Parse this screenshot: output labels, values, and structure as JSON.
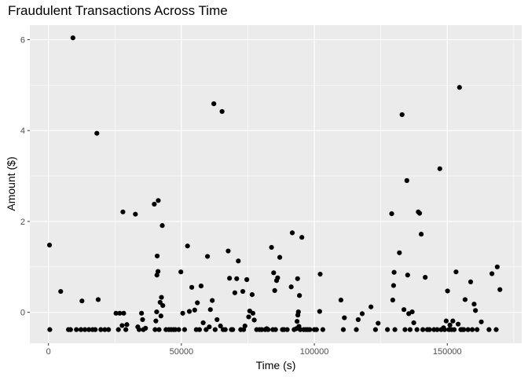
{
  "chart_data": {
    "type": "scatter",
    "title": "Fraudulent Transactions Across Time",
    "xlabel": "Time (s)",
    "ylabel": "Amount ($)",
    "xlim": [
      -7000,
      178000
    ],
    "ylim": [
      -0.68,
      6.32
    ],
    "x_ticks": [
      0,
      50000,
      100000,
      150000
    ],
    "x_tick_labels": [
      "0",
      "50000",
      "100000",
      "150000"
    ],
    "y_ticks": [
      0,
      2,
      4,
      6
    ],
    "y_tick_labels": [
      "0",
      "2",
      "4",
      "6"
    ],
    "grid": true,
    "point_color": "#000000",
    "panel_background": "#ebebeb",
    "grid_color": "#ffffff",
    "points": [
      [
        400,
        1.48
      ],
      [
        500,
        -0.38
      ],
      [
        4600,
        0.46
      ],
      [
        7500,
        -0.38
      ],
      [
        8300,
        -0.38
      ],
      [
        9200,
        6.04
      ],
      [
        10500,
        -0.38
      ],
      [
        12200,
        -0.38
      ],
      [
        12600,
        0.25
      ],
      [
        13700,
        -0.38
      ],
      [
        15200,
        -0.38
      ],
      [
        16600,
        -0.38
      ],
      [
        17600,
        -0.38
      ],
      [
        18200,
        3.94
      ],
      [
        18700,
        0.28
      ],
      [
        19700,
        -0.38
      ],
      [
        21200,
        -0.38
      ],
      [
        22600,
        -0.38
      ],
      [
        25400,
        -0.02
      ],
      [
        26300,
        -0.38
      ],
      [
        26800,
        -0.02
      ],
      [
        27700,
        -0.29
      ],
      [
        28000,
        2.21
      ],
      [
        28300,
        -0.02
      ],
      [
        29100,
        -0.38
      ],
      [
        29500,
        -0.27
      ],
      [
        32700,
        2.16
      ],
      [
        33600,
        -0.32
      ],
      [
        34100,
        -0.38
      ],
      [
        35000,
        -0.02
      ],
      [
        35400,
        -0.16
      ],
      [
        35700,
        -0.38
      ],
      [
        36500,
        -0.35
      ],
      [
        39800,
        2.38
      ],
      [
        40100,
        -0.38
      ],
      [
        40400,
        -0.19
      ],
      [
        40700,
        0.01
      ],
      [
        40800,
        0.82
      ],
      [
        40900,
        1.24
      ],
      [
        41200,
        0.9
      ],
      [
        41300,
        2.46
      ],
      [
        41600,
        -0.38
      ],
      [
        42000,
        0.22
      ],
      [
        42300,
        -0.08
      ],
      [
        42500,
        0.33
      ],
      [
        42800,
        1.91
      ],
      [
        43000,
        0.15
      ],
      [
        44200,
        -0.38
      ],
      [
        45300,
        -0.38
      ],
      [
        46100,
        -0.38
      ],
      [
        47000,
        -0.38
      ],
      [
        47700,
        -0.38
      ],
      [
        49000,
        -0.38
      ],
      [
        49800,
        0.89
      ],
      [
        50500,
        -0.02
      ],
      [
        51200,
        -0.38
      ],
      [
        52300,
        1.46
      ],
      [
        53000,
        0.02
      ],
      [
        53900,
        0.55
      ],
      [
        55000,
        0.05
      ],
      [
        55600,
        -0.38
      ],
      [
        56000,
        0.21
      ],
      [
        56800,
        -0.38
      ],
      [
        57400,
        0.58
      ],
      [
        58200,
        -0.23
      ],
      [
        59300,
        -0.38
      ],
      [
        59800,
        1.23
      ],
      [
        60500,
        -0.32
      ],
      [
        60900,
        0.06
      ],
      [
        61600,
        0.26
      ],
      [
        62200,
        4.59
      ],
      [
        62700,
        -0.38
      ],
      [
        63400,
        -0.16
      ],
      [
        64700,
        -0.3
      ],
      [
        65300,
        4.42
      ],
      [
        65700,
        -0.38
      ],
      [
        66500,
        -0.38
      ],
      [
        67600,
        1.35
      ],
      [
        68100,
        0.75
      ],
      [
        68800,
        -0.38
      ],
      [
        69300,
        -0.38
      ],
      [
        70100,
        0.43
      ],
      [
        70800,
        0.74
      ],
      [
        71400,
        1.13
      ],
      [
        72300,
        -0.38
      ],
      [
        73100,
        0.46
      ],
      [
        73400,
        -0.38
      ],
      [
        73900,
        -0.3
      ],
      [
        74600,
        0.72
      ],
      [
        75300,
        -0.1
      ],
      [
        75700,
        0.03
      ],
      [
        76600,
        0.39
      ],
      [
        76900,
        -0.02
      ],
      [
        77400,
        -0.17
      ],
      [
        78300,
        -0.38
      ],
      [
        79400,
        -0.38
      ],
      [
        80200,
        -0.38
      ],
      [
        81500,
        -0.38
      ],
      [
        82100,
        -0.36
      ],
      [
        82600,
        -0.38
      ],
      [
        83900,
        1.43
      ],
      [
        84400,
        -0.38
      ],
      [
        84700,
        0.87
      ],
      [
        85100,
        0.48
      ],
      [
        85400,
        -0.38
      ],
      [
        85800,
        0.7
      ],
      [
        86200,
        0.76
      ],
      [
        87000,
        1.21
      ],
      [
        88000,
        -0.38
      ],
      [
        88600,
        -0.38
      ],
      [
        89800,
        -0.38
      ],
      [
        91300,
        0.56
      ],
      [
        91700,
        1.75
      ],
      [
        92400,
        -0.38
      ],
      [
        93200,
        -0.36
      ],
      [
        93500,
        -0.2
      ],
      [
        93700,
        0.74
      ],
      [
        93800,
        -0.06
      ],
      [
        94000,
        0.01
      ],
      [
        94200,
        -0.31
      ],
      [
        94400,
        0.37
      ],
      [
        94700,
        -0.38
      ],
      [
        95300,
        1.65
      ],
      [
        96000,
        -0.38
      ],
      [
        96800,
        -0.38
      ],
      [
        97500,
        -0.38
      ],
      [
        98300,
        -0.38
      ],
      [
        100000,
        -0.38
      ],
      [
        100800,
        -0.38
      ],
      [
        102000,
        0.02
      ],
      [
        102200,
        0.84
      ],
      [
        103200,
        -0.38
      ],
      [
        110000,
        0.27
      ],
      [
        110900,
        -0.38
      ],
      [
        111300,
        -0.12
      ],
      [
        115800,
        -0.38
      ],
      [
        116500,
        -0.16
      ],
      [
        118000,
        -0.03
      ],
      [
        121300,
        0.12
      ],
      [
        123000,
        -0.38
      ],
      [
        124000,
        -0.24
      ],
      [
        127500,
        -0.38
      ],
      [
        129100,
        2.17
      ],
      [
        129500,
        0.27
      ],
      [
        129800,
        0.59
      ],
      [
        130000,
        0.88
      ],
      [
        130300,
        -0.38
      ],
      [
        132000,
        1.31
      ],
      [
        133000,
        4.35
      ],
      [
        133700,
        0.06
      ],
      [
        134100,
        -0.38
      ],
      [
        134800,
        2.9
      ],
      [
        135100,
        0.82
      ],
      [
        135500,
        -0.03
      ],
      [
        136000,
        -0.38
      ],
      [
        136800,
        0.01
      ],
      [
        137400,
        -0.23
      ],
      [
        138600,
        -0.38
      ],
      [
        139100,
        2.21
      ],
      [
        139600,
        2.18
      ],
      [
        140200,
        1.72
      ],
      [
        140800,
        -0.38
      ],
      [
        141700,
        0.77
      ],
      [
        142500,
        -0.38
      ],
      [
        143300,
        -0.38
      ],
      [
        145000,
        -0.38
      ],
      [
        146200,
        -0.38
      ],
      [
        147200,
        3.16
      ],
      [
        147700,
        -0.38
      ],
      [
        148600,
        -0.34
      ],
      [
        149000,
        -0.38
      ],
      [
        149600,
        -0.19
      ],
      [
        150100,
        0.47
      ],
      [
        150600,
        -0.38
      ],
      [
        151000,
        -0.28
      ],
      [
        151600,
        -0.38
      ],
      [
        152100,
        -0.19
      ],
      [
        152600,
        -0.38
      ],
      [
        153300,
        0.89
      ],
      [
        154100,
        -0.26
      ],
      [
        154600,
        4.95
      ],
      [
        155100,
        -0.38
      ],
      [
        155600,
        -0.38
      ],
      [
        156200,
        -0.38
      ],
      [
        156700,
        0.28
      ],
      [
        157800,
        -0.38
      ],
      [
        158800,
        0.67
      ],
      [
        159400,
        -0.38
      ],
      [
        160100,
        0.18
      ],
      [
        160600,
        0.04
      ],
      [
        161200,
        -0.38
      ],
      [
        162800,
        -0.21
      ],
      [
        165700,
        -0.38
      ],
      [
        166800,
        0.85
      ],
      [
        168400,
        -0.38
      ],
      [
        168800,
        1.0
      ],
      [
        169800,
        0.5
      ]
    ]
  }
}
